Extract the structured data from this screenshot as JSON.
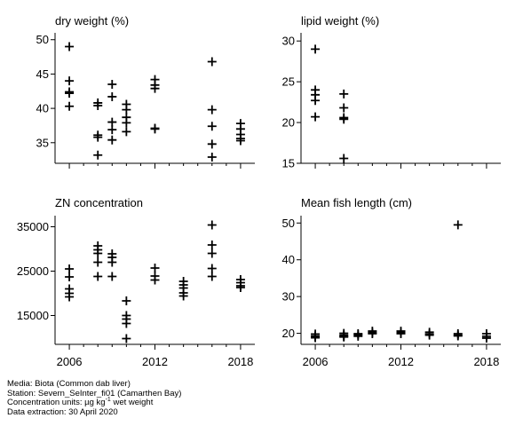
{
  "chart_data": [
    {
      "type": "scatter",
      "title": "dry weight (%)",
      "xlim": [
        2005,
        2019
      ],
      "ylim": [
        32,
        51
      ],
      "xticks": [
        2006,
        2012,
        2018
      ],
      "xtick_labels": [],
      "yticks": [
        35,
        40,
        45,
        50
      ],
      "ytick_labels": [
        "35",
        "40",
        "45",
        "50"
      ],
      "points": [
        [
          2006,
          49.0
        ],
        [
          2006,
          44.0
        ],
        [
          2006,
          42.4
        ],
        [
          2006,
          42.2
        ],
        [
          2006,
          40.3
        ],
        [
          2008,
          40.8
        ],
        [
          2008,
          40.4
        ],
        [
          2008,
          36.1
        ],
        [
          2008,
          35.8
        ],
        [
          2008,
          33.2
        ],
        [
          2009,
          43.5
        ],
        [
          2009,
          41.7
        ],
        [
          2009,
          38.0
        ],
        [
          2009,
          36.9
        ],
        [
          2009,
          35.4
        ],
        [
          2010,
          40.6
        ],
        [
          2010,
          39.8
        ],
        [
          2010,
          38.7
        ],
        [
          2010,
          37.9
        ],
        [
          2010,
          36.6
        ],
        [
          2012,
          44.2
        ],
        [
          2012,
          43.4
        ],
        [
          2012,
          42.9
        ],
        [
          2012,
          37.1
        ],
        [
          2012,
          37.0
        ],
        [
          2016,
          46.8
        ],
        [
          2016,
          39.8
        ],
        [
          2016,
          37.4
        ],
        [
          2016,
          34.8
        ],
        [
          2016,
          32.9
        ],
        [
          2018,
          37.8
        ],
        [
          2018,
          37.0
        ],
        [
          2018,
          36.2
        ],
        [
          2018,
          35.6
        ],
        [
          2018,
          35.3
        ]
      ]
    },
    {
      "type": "scatter",
      "title": "lipid weight (%)",
      "xlim": [
        2005,
        2019
      ],
      "ylim": [
        15,
        31
      ],
      "xticks": [
        2006,
        2012,
        2018
      ],
      "xtick_labels": [],
      "yticks": [
        15,
        20,
        25,
        30
      ],
      "ytick_labels": [
        "15",
        "20",
        "25",
        "30"
      ],
      "points": [
        [
          2006,
          29.0
        ],
        [
          2006,
          24.0
        ],
        [
          2006,
          23.4
        ],
        [
          2006,
          22.7
        ],
        [
          2006,
          20.7
        ],
        [
          2008,
          23.5
        ],
        [
          2008,
          21.8
        ],
        [
          2008,
          20.6
        ],
        [
          2008,
          20.4
        ],
        [
          2008,
          15.6
        ]
      ]
    },
    {
      "type": "scatter",
      "title": "ZN concentration",
      "xlim": [
        2005,
        2019
      ],
      "ylim": [
        8500,
        37500
      ],
      "xticks": [
        2006,
        2012,
        2018
      ],
      "xtick_labels": [
        "2006",
        "2012",
        "2018"
      ],
      "yticks": [
        15000,
        25000,
        35000
      ],
      "ytick_labels": [
        "15000",
        "25000",
        "35000"
      ],
      "points": [
        [
          2006,
          25500
        ],
        [
          2006,
          23700
        ],
        [
          2006,
          21000
        ],
        [
          2006,
          20000
        ],
        [
          2006,
          19200
        ],
        [
          2008,
          30700
        ],
        [
          2008,
          29800
        ],
        [
          2008,
          29000
        ],
        [
          2008,
          27000
        ],
        [
          2008,
          23800
        ],
        [
          2009,
          28900
        ],
        [
          2009,
          28100
        ],
        [
          2009,
          27000
        ],
        [
          2009,
          23800
        ],
        [
          2010,
          18300
        ],
        [
          2010,
          15000
        ],
        [
          2010,
          14200
        ],
        [
          2010,
          13200
        ],
        [
          2010,
          9800
        ],
        [
          2012,
          25700
        ],
        [
          2012,
          23900
        ],
        [
          2012,
          23000
        ],
        [
          2014,
          22700
        ],
        [
          2014,
          21900
        ],
        [
          2014,
          21200
        ],
        [
          2014,
          20100
        ],
        [
          2014,
          19400
        ],
        [
          2016,
          35400
        ],
        [
          2016,
          30900
        ],
        [
          2016,
          29000
        ],
        [
          2016,
          25600
        ],
        [
          2016,
          23800
        ],
        [
          2018,
          23100
        ],
        [
          2018,
          22400
        ],
        [
          2018,
          21700
        ],
        [
          2018,
          21300
        ]
      ]
    },
    {
      "type": "scatter",
      "title": "Mean fish length (cm)",
      "xlim": [
        2005,
        2019
      ],
      "ylim": [
        17,
        52
      ],
      "xticks": [
        2006,
        2012,
        2018
      ],
      "xtick_labels": [
        "2006",
        "2012",
        "2018"
      ],
      "yticks": [
        20,
        30,
        40,
        50
      ],
      "ytick_labels": [
        "20",
        "30",
        "40",
        "50"
      ],
      "points": [
        [
          2006,
          19.8
        ],
        [
          2006,
          19.3
        ],
        [
          2006,
          19.0
        ],
        [
          2006,
          18.8
        ],
        [
          2008,
          20.0
        ],
        [
          2008,
          19.5
        ],
        [
          2008,
          19.2
        ],
        [
          2008,
          19.0
        ],
        [
          2009,
          19.9
        ],
        [
          2009,
          19.6
        ],
        [
          2009,
          19.2
        ],
        [
          2010,
          20.6
        ],
        [
          2010,
          20.2
        ],
        [
          2010,
          19.9
        ],
        [
          2012,
          20.6
        ],
        [
          2012,
          20.2
        ],
        [
          2012,
          19.9
        ],
        [
          2014,
          20.3
        ],
        [
          2014,
          19.8
        ],
        [
          2014,
          19.5
        ],
        [
          2016,
          49.5
        ],
        [
          2016,
          19.9
        ],
        [
          2016,
          19.5
        ],
        [
          2016,
          19.3
        ],
        [
          2018,
          19.9
        ],
        [
          2018,
          19.2
        ],
        [
          2018,
          18.7
        ]
      ]
    }
  ],
  "footer": {
    "media": "Media: Biota (Common dab liver)",
    "station": "Station: Severn_SeInter_fi01 (Camarthen Bay)",
    "units_prefix": "Concentration units:  µg kg",
    "units_exponent": "-1",
    "units_suffix": " wet weight",
    "extraction": "Data extraction: 30 April 2020"
  }
}
